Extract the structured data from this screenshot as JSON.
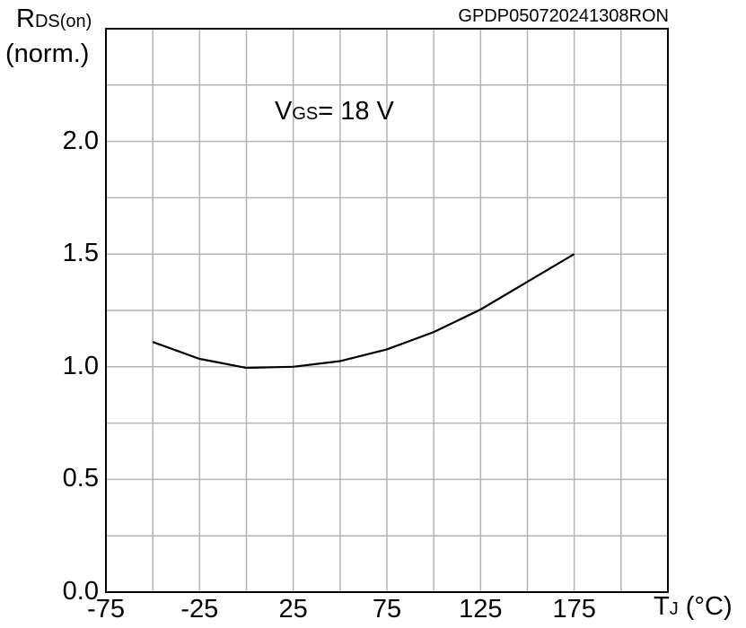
{
  "chart_data": {
    "type": "line",
    "title": "",
    "id_label": "GPDP050720241308RON",
    "ylabel": "R_DS(on) (norm.)",
    "ylabel_main": "R",
    "ylabel_sub": "DS(on)",
    "ylabel_line2": "(norm.)",
    "xlabel_main": "T",
    "xlabel_sub": "J",
    "xlabel_unit": " (°C)",
    "annotation_main": "V",
    "annotation_sub": "GS",
    "annotation_rest": "= 18 V",
    "xlim": [
      -75,
      225
    ],
    "ylim": [
      0,
      2.5
    ],
    "xticks": [
      "-75",
      "-25",
      "25",
      "75",
      "125",
      "175"
    ],
    "yticks": [
      "0.0",
      "0.5",
      "1.0",
      "1.5",
      "2.0"
    ],
    "grid": true,
    "series": [
      {
        "x": [
          -50,
          -25,
          0,
          25,
          50,
          75,
          100,
          125,
          150,
          175
        ],
        "y": [
          1.11,
          1.035,
          0.995,
          1.0,
          1.025,
          1.077,
          1.154,
          1.254,
          1.377,
          1.5
        ]
      }
    ]
  }
}
